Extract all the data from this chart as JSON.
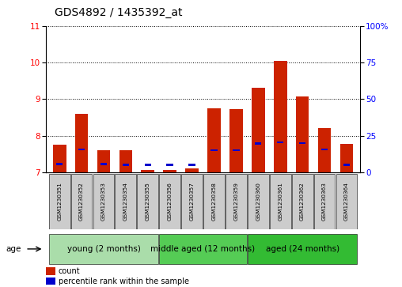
{
  "title": "GDS4892 / 1435392_at",
  "samples": [
    "GSM1230351",
    "GSM1230352",
    "GSM1230353",
    "GSM1230354",
    "GSM1230355",
    "GSM1230356",
    "GSM1230357",
    "GSM1230358",
    "GSM1230359",
    "GSM1230360",
    "GSM1230361",
    "GSM1230362",
    "GSM1230363",
    "GSM1230364"
  ],
  "count_values": [
    7.75,
    8.6,
    7.6,
    7.6,
    7.05,
    7.05,
    7.1,
    8.75,
    8.72,
    9.3,
    10.05,
    9.07,
    8.2,
    7.78
  ],
  "percentile_values": [
    7.22,
    7.62,
    7.22,
    7.2,
    7.2,
    7.2,
    7.2,
    7.6,
    7.6,
    7.78,
    7.82,
    7.8,
    7.62,
    7.2
  ],
  "y_min": 7.0,
  "y_max": 11.0,
  "y_ticks": [
    7,
    8,
    9,
    10,
    11
  ],
  "y2_tick_labels": [
    "0",
    "25",
    "50",
    "75",
    "100%"
  ],
  "y2_tick_positions": [
    7.0,
    8.0,
    9.0,
    10.0,
    11.0
  ],
  "groups": [
    {
      "label": "young (2 months)",
      "start": 0,
      "end": 4
    },
    {
      "label": "middle aged (12 months)",
      "start": 5,
      "end": 8
    },
    {
      "label": "aged (24 months)",
      "start": 9,
      "end": 13
    }
  ],
  "group_colors": [
    "#aaddaa",
    "#55cc55",
    "#33bb33"
  ],
  "age_label": "age",
  "bar_color": "#cc2200",
  "percentile_color": "#0000cc",
  "bar_width": 0.6,
  "sample_box_color": "#cccccc",
  "legend_count": "count",
  "legend_percentile": "percentile rank within the sample",
  "title_fontsize": 10,
  "tick_fontsize": 7.5,
  "group_fontsize": 7.5
}
